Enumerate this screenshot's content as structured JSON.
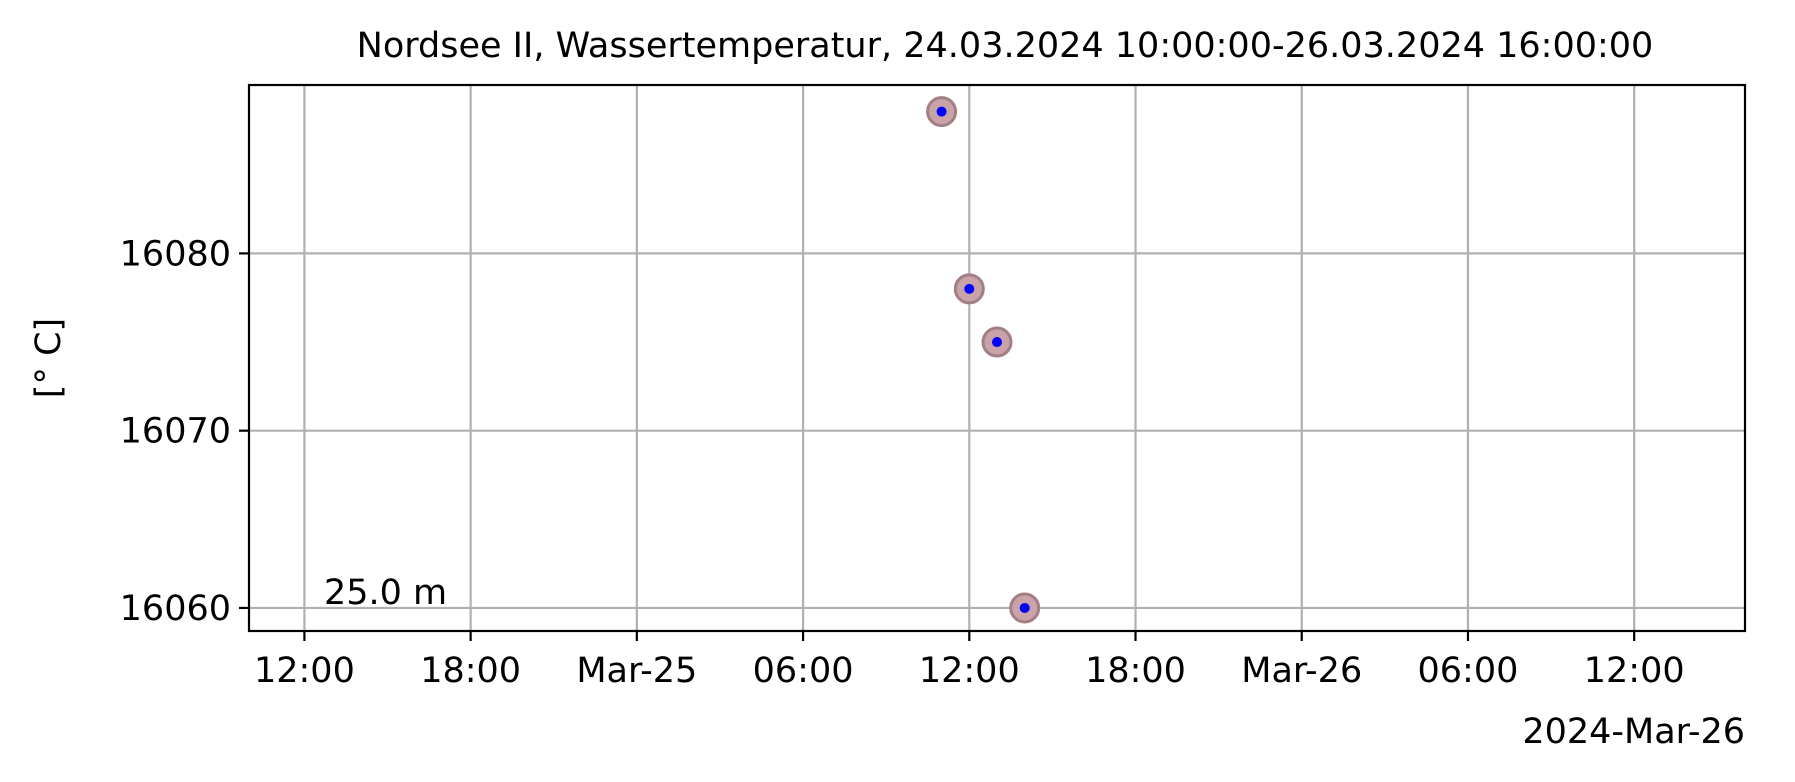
{
  "chart_data": {
    "type": "scatter",
    "title": "Nordsee II, Wassertemperatur, 24.03.2024 10:00:00-26.03.2024 16:00:00",
    "xlabel": "",
    "ylabel": "[° C]",
    "x_offset_label": "2024-Mar-26",
    "annotation": "25.0 m",
    "xlim": [
      "2024-03-24T10:00",
      "2024-03-26T16:00"
    ],
    "ylim": [
      16058.7,
      16089.5
    ],
    "grid": true,
    "x_ticks": [
      {
        "value": "2024-03-24T12:00",
        "label": "12:00"
      },
      {
        "value": "2024-03-24T18:00",
        "label": "18:00"
      },
      {
        "value": "2024-03-25T00:00",
        "label": "Mar-25"
      },
      {
        "value": "2024-03-25T06:00",
        "label": "06:00"
      },
      {
        "value": "2024-03-25T12:00",
        "label": "12:00"
      },
      {
        "value": "2024-03-25T18:00",
        "label": "18:00"
      },
      {
        "value": "2024-03-26T00:00",
        "label": "Mar-26"
      },
      {
        "value": "2024-03-26T06:00",
        "label": "06:00"
      },
      {
        "value": "2024-03-26T12:00",
        "label": "12:00"
      }
    ],
    "y_ticks": [
      {
        "value": 16060,
        "label": "16060"
      },
      {
        "value": 16070,
        "label": "16070"
      },
      {
        "value": 16080,
        "label": "16080"
      }
    ],
    "series": [
      {
        "points": [
          {
            "x": "2024-03-25T11:00",
            "y": 16088
          },
          {
            "x": "2024-03-25T12:00",
            "y": 16078
          },
          {
            "x": "2024-03-25T13:00",
            "y": 16075
          },
          {
            "x": "2024-03-25T14:00",
            "y": 16060
          }
        ]
      }
    ],
    "colors": {
      "marker_fill": "#0000ff",
      "halo_fill": "#c9a3a8",
      "halo_edge": "#a27f86",
      "grid": "#b0b0b0"
    }
  }
}
